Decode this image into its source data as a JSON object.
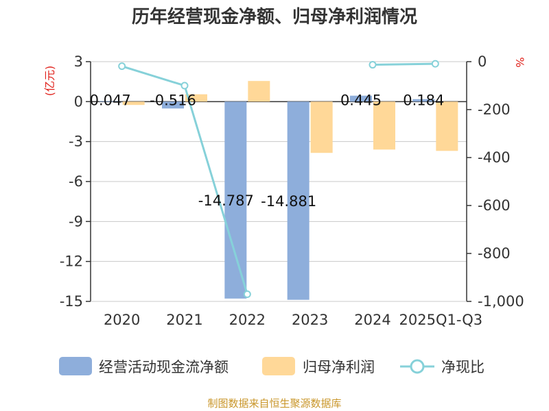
{
  "chart_data": {
    "type": "bar",
    "title": "历年经营现金净额、归母净利润情况",
    "categories": [
      "2020",
      "2021",
      "2022",
      "2023",
      "2024",
      "2025Q1-Q3"
    ],
    "series": [
      {
        "name": "经营活动现金流净额",
        "axis": "left",
        "kind": "bar",
        "color": "#8eaedb",
        "values": [
          0.047,
          -0.516,
          -14.787,
          -14.881,
          0.445,
          0.184
        ],
        "labels": [
          "0.047",
          "-0.516",
          "-14.787",
          "-14.881",
          "0.445",
          "0.184"
        ]
      },
      {
        "name": "归母净利润",
        "axis": "left",
        "kind": "bar",
        "color": "#ffd898",
        "values": [
          -0.25,
          0.55,
          1.55,
          -3.85,
          -3.6,
          -3.7
        ]
      },
      {
        "name": "净现比",
        "axis": "right",
        "kind": "line",
        "color": "#86d1d9",
        "values": [
          -19,
          -100,
          -970,
          null,
          -13,
          -9
        ]
      }
    ],
    "left_axis": {
      "unit": "(亿元)",
      "min": -15,
      "max": 3,
      "ticks": [
        3,
        0,
        -3,
        -6,
        -9,
        -12,
        -15
      ],
      "tick_labels": [
        "3",
        "0",
        "-3",
        "-6",
        "-9",
        "-12",
        "-15"
      ]
    },
    "right_axis": {
      "unit": "%",
      "min": -1000,
      "max": 0,
      "ticks": [
        0,
        -200,
        -400,
        -600,
        -800,
        -1000
      ],
      "tick_labels": [
        "0",
        "-200",
        "-400",
        "-600",
        "-800",
        "-1,000"
      ]
    },
    "grid": true,
    "legend_position": "bottom"
  },
  "source": "制图数据来自恒生聚源数据库"
}
